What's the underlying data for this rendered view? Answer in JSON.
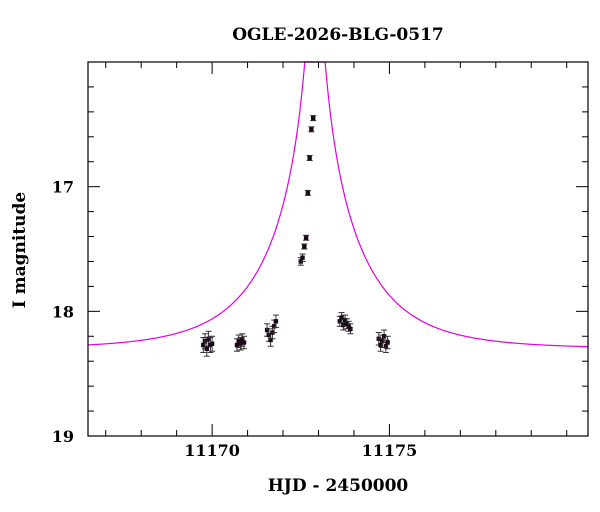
{
  "chart_data": {
    "type": "scatter",
    "title": "OGLE-2026-BLG-0517",
    "xlabel": "HJD - 2450000",
    "ylabel": "I magnitude",
    "xlim": [
      11166.5,
      11180.6
    ],
    "ylim": [
      19,
      16.0
    ],
    "y_inverted": true,
    "grid": false,
    "x_major_ticks": [
      11170,
      11175
    ],
    "x_minor_ticks": [
      11167,
      11168,
      11169,
      11171,
      11172,
      11173,
      11174,
      11176,
      11177,
      11178,
      11179,
      11180
    ],
    "y_major_ticks": [
      17,
      18,
      19
    ],
    "y_minor_ticks": [
      16.2,
      16.4,
      16.6,
      16.8,
      17.2,
      17.4,
      17.6,
      17.8,
      18.2,
      18.4,
      18.6,
      18.8
    ],
    "x_tick_labels": [
      "11170",
      "11175"
    ],
    "y_tick_labels": [
      "17",
      "18",
      "19"
    ],
    "model": {
      "color": "#e000e0",
      "baseline_mag": 18.3,
      "t0": 11172.9,
      "tE": 2.5,
      "u0": 0.038
    },
    "series": [
      {
        "marker_color": "#1a0a1a",
        "x": [
          11169.75,
          11169.8,
          11169.85,
          11169.9,
          11169.95,
          11170.0,
          11170.7,
          11170.75,
          11170.8,
          11170.85,
          11170.9,
          11171.55,
          11171.6,
          11171.65,
          11171.7,
          11171.75,
          11171.8,
          11172.5,
          11172.55,
          11172.6,
          11172.65,
          11172.7,
          11172.75,
          11172.8,
          11172.85,
          11173.6,
          11173.65,
          11173.7,
          11173.75,
          11173.8,
          11173.85,
          11173.9,
          11174.7,
          11174.75,
          11174.8,
          11174.85,
          11174.9,
          11174.95
        ],
        "y": [
          18.27,
          18.24,
          18.3,
          18.22,
          18.27,
          18.26,
          18.27,
          18.24,
          18.26,
          18.23,
          18.25,
          18.15,
          18.19,
          18.23,
          18.17,
          18.12,
          18.08,
          17.6,
          17.57,
          17.48,
          17.41,
          17.05,
          16.77,
          16.54,
          16.45,
          18.08,
          18.05,
          18.11,
          18.07,
          18.1,
          18.12,
          18.14,
          18.22,
          18.27,
          18.24,
          18.2,
          18.28,
          18.25
        ],
        "yerr": [
          0.06,
          0.06,
          0.06,
          0.06,
          0.06,
          0.06,
          0.05,
          0.05,
          0.05,
          0.05,
          0.05,
          0.05,
          0.05,
          0.05,
          0.05,
          0.05,
          0.05,
          0.03,
          0.03,
          0.02,
          0.02,
          0.02,
          0.02,
          0.02,
          0.02,
          0.04,
          0.04,
          0.04,
          0.04,
          0.04,
          0.04,
          0.04,
          0.05,
          0.05,
          0.05,
          0.05,
          0.05,
          0.05
        ]
      }
    ]
  }
}
